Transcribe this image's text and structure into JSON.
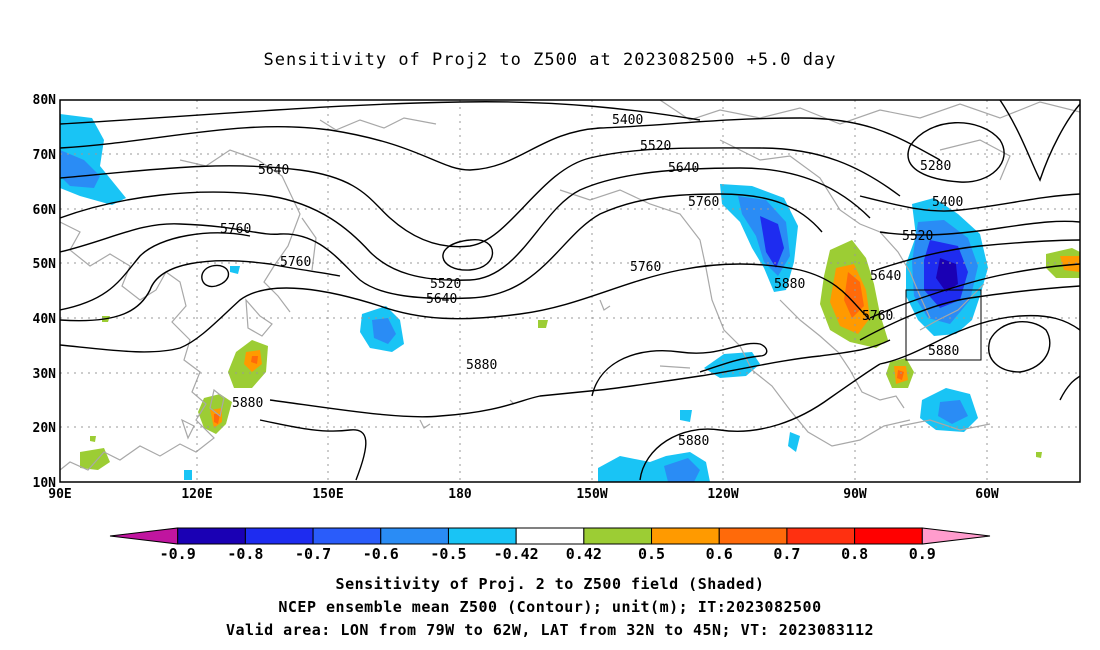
{
  "title": "Sensitivity of Proj2 to Z500 at 2023082500 +5.0 day",
  "axes": {
    "lat_labels": [
      "80N",
      "70N",
      "60N",
      "50N",
      "40N",
      "30N",
      "20N",
      "10N"
    ],
    "lon_labels": [
      "90E",
      "120E",
      "150E",
      "180",
      "150W",
      "120W",
      "90W",
      "60W"
    ]
  },
  "contour_labels": [
    "5400",
    "5520",
    "5640",
    "5760",
    "5280",
    "5400",
    "5520",
    "5640",
    "5760",
    "5880",
    "5760",
    "5640",
    "5760",
    "5520",
    "5880",
    "5880",
    "5880",
    "5880"
  ],
  "colorbar": {
    "labels": [
      "-0.9",
      "-0.8",
      "-0.7",
      "-0.6",
      "-0.5",
      "-0.42",
      "0.42",
      "0.5",
      "0.6",
      "0.7",
      "0.8",
      "0.9"
    ],
    "colors": [
      "#c0159f",
      "#1a00b4",
      "#1e2cf0",
      "#2a5cfa",
      "#2a8cf5",
      "#19c4f5",
      "#ffffff",
      "#9ccd34",
      "#ff9a00",
      "#ff6a0a",
      "#ff3010",
      "#ff0000",
      "#ff9ccd"
    ]
  },
  "validity_box": {
    "lon_range": [
      "79W",
      "62W"
    ],
    "lat_range": [
      "32N",
      "45N"
    ]
  },
  "footer": {
    "line1": "Sensitivity of Proj. 2 to Z500 field (Shaded)",
    "line2": "NCEP ensemble mean Z500 (Contour); unit(m); IT:2023082500",
    "line3": "Valid area: LON from 79W to 62W, LAT from 32N to 45N; VT: 2023083112"
  }
}
